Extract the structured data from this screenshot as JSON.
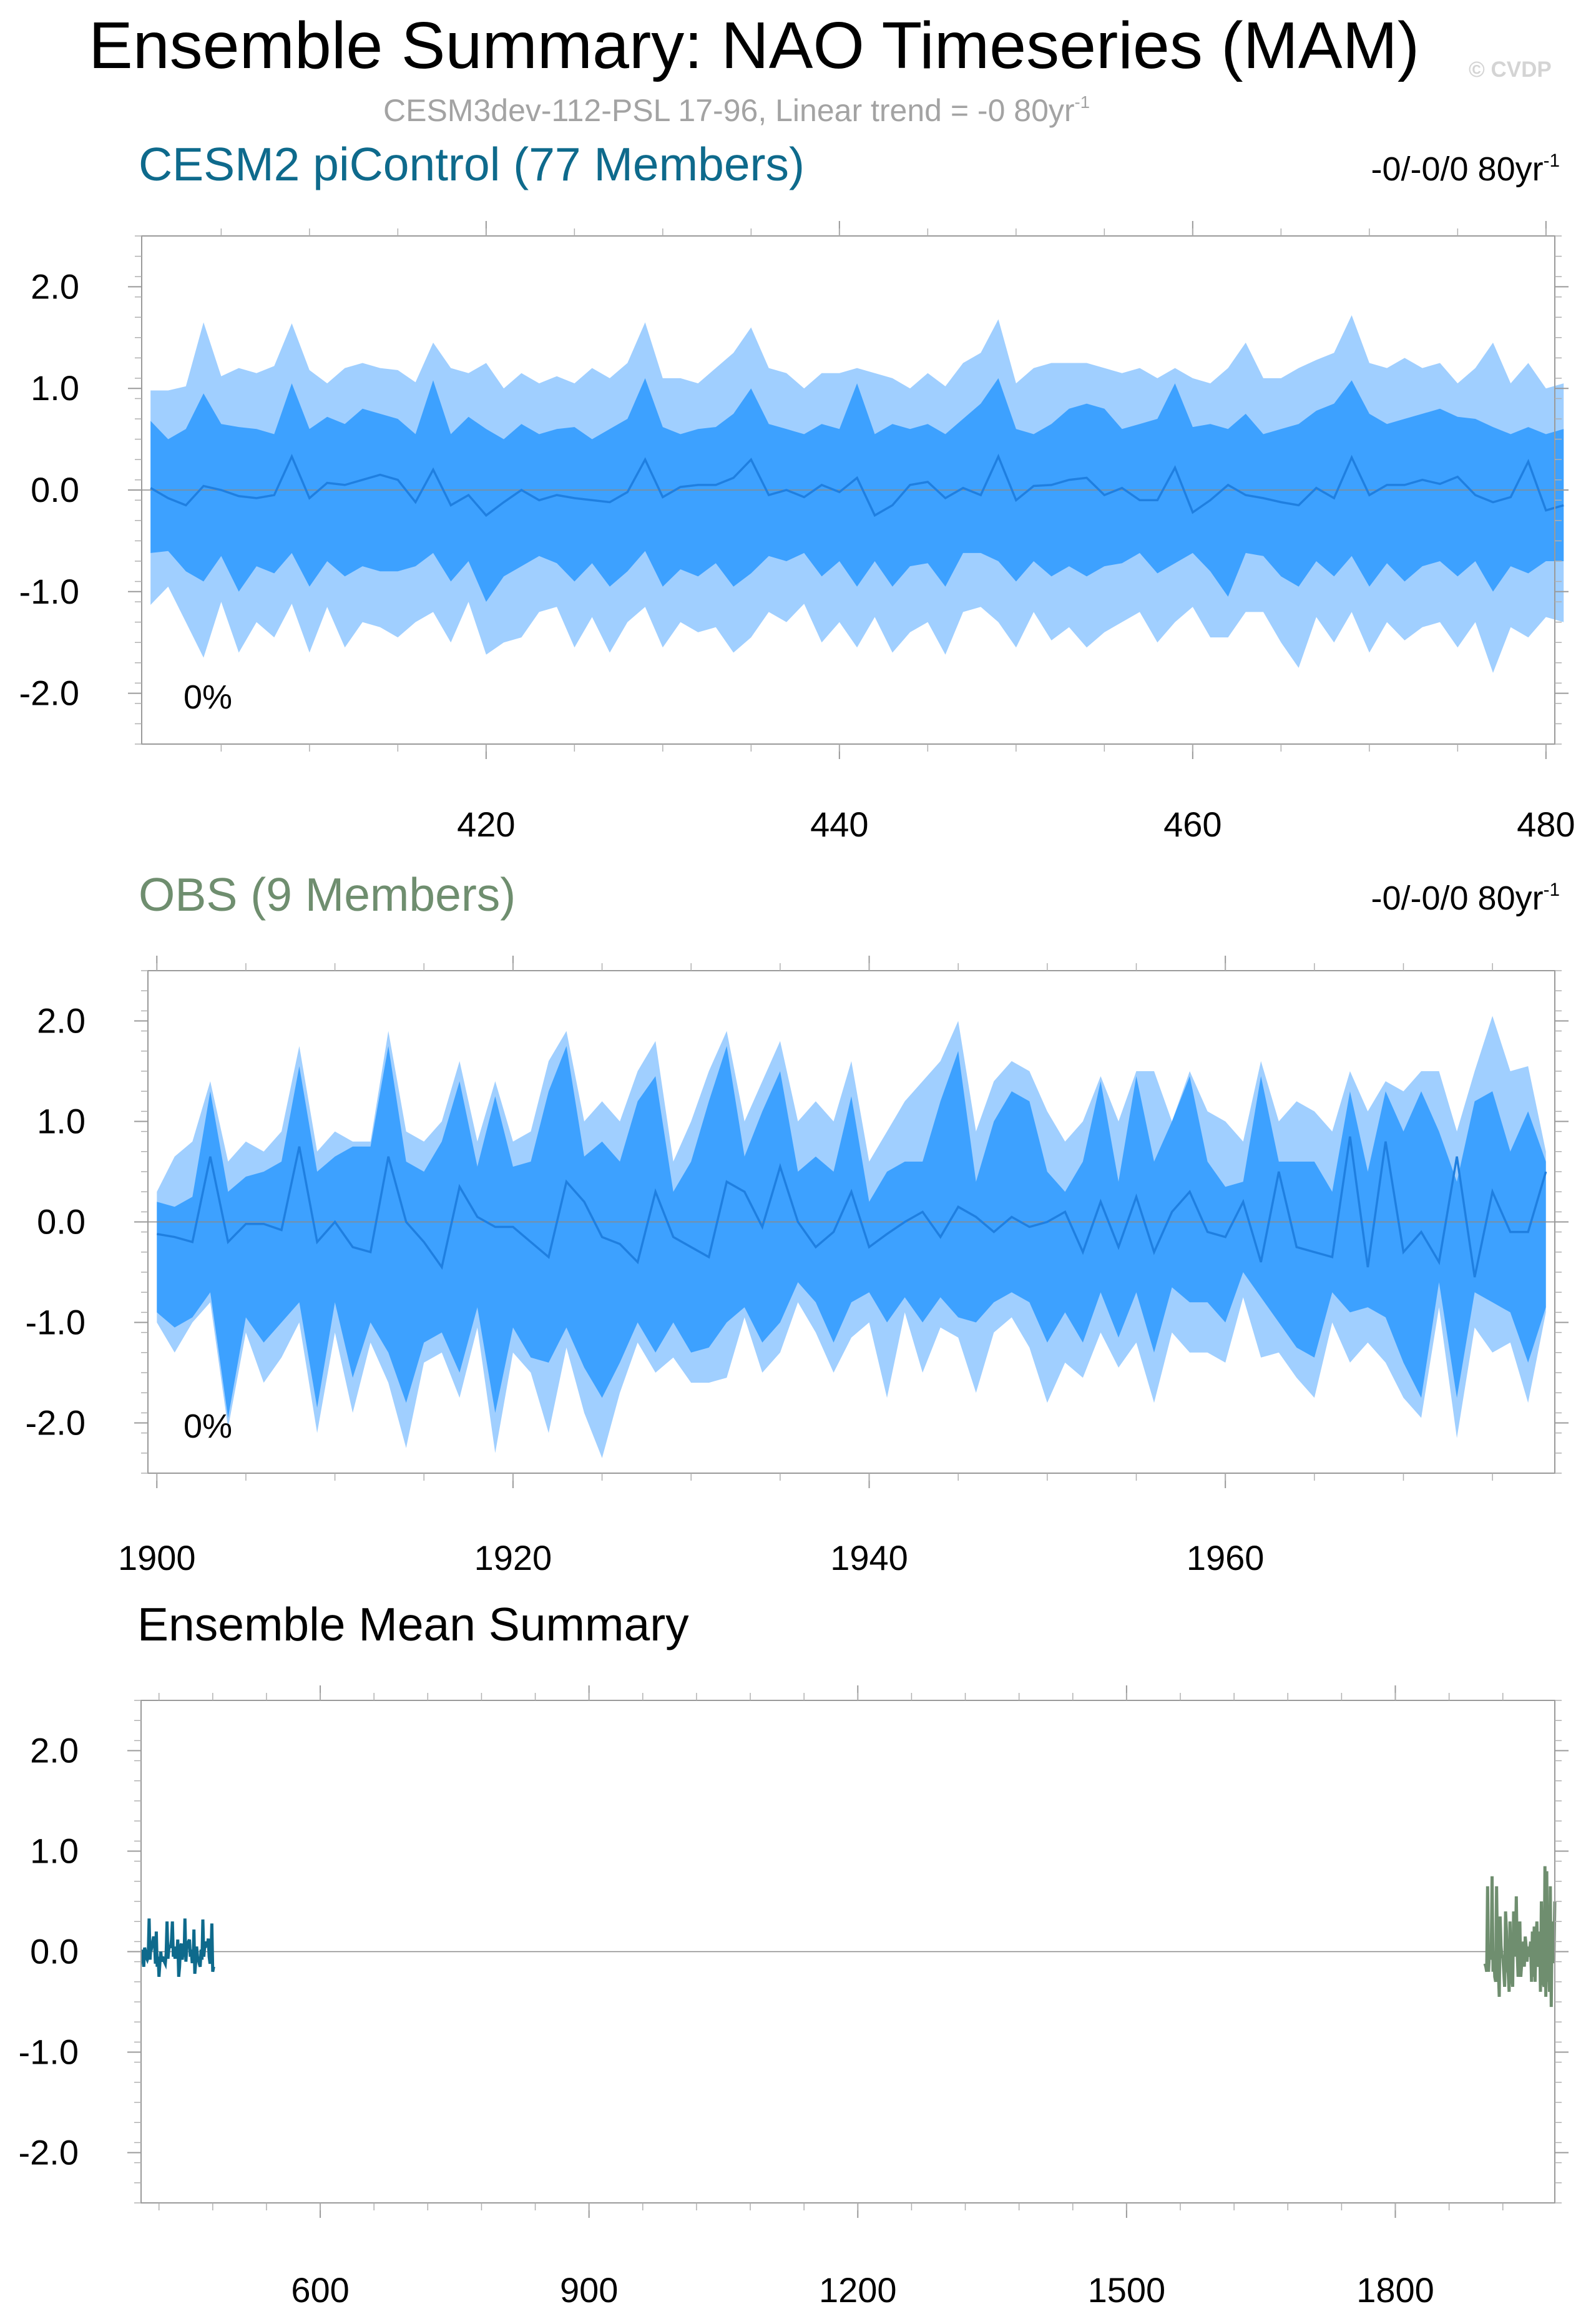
{
  "header": {
    "title": "Ensemble Summary: NAO Timeseries (MAM)",
    "subtitle_prefix": "CESM3dev-112-PSL 17-96, Linear trend = -0 80yr",
    "subtitle_sup": "-1",
    "watermark": "© CVDP"
  },
  "chart_data": [
    {
      "type": "area",
      "title": "CESM2 piControl (77 Members)",
      "title_color": "#0e6a8c",
      "trend_prefix": "-0/-0/0 80yr",
      "trend_sup": "-1",
      "annotation": "0%",
      "xlabel": "",
      "ylabel": "",
      "xlim": [
        400.5,
        480.5
      ],
      "ylim": [
        -2.5,
        2.5
      ],
      "xticks": [
        420,
        440,
        460,
        480
      ],
      "yticks": [
        -2.0,
        -1.0,
        0.0,
        1.0,
        2.0
      ],
      "ytick_labels": [
        "-2.0",
        "-1.0",
        "0.0",
        "1.0",
        "2.0"
      ],
      "bands": [
        {
          "name": "",
          "color": "#a0cfff",
          "upper": [
            0.98,
            0.98,
            1.02,
            1.65,
            1.12,
            1.2,
            1.15,
            1.22,
            1.64,
            1.18,
            1.05,
            1.2,
            1.25,
            1.2,
            1.18,
            1.06,
            1.45,
            1.2,
            1.15,
            1.25,
            1.0,
            1.15,
            1.05,
            1.12,
            1.05,
            1.2,
            1.1,
            1.25,
            1.65,
            1.1,
            1.1,
            1.05,
            1.2,
            1.35,
            1.6,
            1.2,
            1.15,
            1.0,
            1.15,
            1.15,
            1.2,
            1.15,
            1.1,
            1.0,
            1.15,
            1.02,
            1.25,
            1.35,
            1.68,
            1.05,
            1.2,
            1.25,
            1.25,
            1.25,
            1.2,
            1.15,
            1.2,
            1.1,
            1.2,
            1.1,
            1.05,
            1.2,
            1.45,
            1.1,
            1.1,
            1.2,
            1.28,
            1.35,
            1.72,
            1.25,
            1.2,
            1.3,
            1.2,
            1.25,
            1.05,
            1.2,
            1.45,
            1.05,
            1.25,
            1.0,
            1.05
          ],
          "lower": [
            -1.13,
            -0.95,
            -1.3,
            -1.65,
            -1.1,
            -1.6,
            -1.3,
            -1.45,
            -1.12,
            -1.6,
            -1.15,
            -1.55,
            -1.3,
            -1.35,
            -1.45,
            -1.3,
            -1.2,
            -1.5,
            -1.1,
            -1.62,
            -1.5,
            -1.45,
            -1.2,
            -1.15,
            -1.55,
            -1.25,
            -1.6,
            -1.3,
            -1.15,
            -1.55,
            -1.3,
            -1.4,
            -1.35,
            -1.6,
            -1.45,
            -1.2,
            -1.3,
            -1.12,
            -1.5,
            -1.3,
            -1.55,
            -1.25,
            -1.6,
            -1.4,
            -1.3,
            -1.62,
            -1.2,
            -1.15,
            -1.3,
            -1.55,
            -1.2,
            -1.48,
            -1.35,
            -1.55,
            -1.4,
            -1.3,
            -1.2,
            -1.5,
            -1.3,
            -1.15,
            -1.45,
            -1.45,
            -1.2,
            -1.2,
            -1.5,
            -1.75,
            -1.25,
            -1.5,
            -1.2,
            -1.6,
            -1.3,
            -1.48,
            -1.35,
            -1.3,
            -1.55,
            -1.3,
            -1.8,
            -1.35,
            -1.45,
            -1.25,
            -1.3
          ]
        },
        {
          "name": "",
          "color": "#3da1ff",
          "upper": [
            0.68,
            0.5,
            0.6,
            0.95,
            0.65,
            0.62,
            0.6,
            0.55,
            1.05,
            0.6,
            0.72,
            0.65,
            0.8,
            0.75,
            0.7,
            0.55,
            1.08,
            0.55,
            0.72,
            0.6,
            0.5,
            0.65,
            0.55,
            0.6,
            0.62,
            0.5,
            0.6,
            0.7,
            1.1,
            0.62,
            0.55,
            0.6,
            0.62,
            0.75,
            1.0,
            0.65,
            0.6,
            0.55,
            0.65,
            0.6,
            1.05,
            0.55,
            0.65,
            0.6,
            0.65,
            0.55,
            0.7,
            0.85,
            1.1,
            0.6,
            0.55,
            0.65,
            0.8,
            0.85,
            0.8,
            0.6,
            0.65,
            0.7,
            1.05,
            0.62,
            0.65,
            0.6,
            0.75,
            0.55,
            0.6,
            0.65,
            0.78,
            0.85,
            1.08,
            0.75,
            0.65,
            0.7,
            0.75,
            0.8,
            0.72,
            0.7,
            0.62,
            0.55,
            0.62,
            0.55,
            0.6
          ],
          "lower": [
            -0.62,
            -0.6,
            -0.8,
            -0.9,
            -0.65,
            -1.0,
            -0.75,
            -0.82,
            -0.62,
            -0.95,
            -0.7,
            -0.85,
            -0.75,
            -0.8,
            -0.8,
            -0.75,
            -0.62,
            -0.9,
            -0.7,
            -1.1,
            -0.85,
            -0.75,
            -0.65,
            -0.72,
            -0.9,
            -0.72,
            -0.95,
            -0.8,
            -0.6,
            -0.95,
            -0.78,
            -0.85,
            -0.72,
            -0.95,
            -0.82,
            -0.65,
            -0.7,
            -0.62,
            -0.85,
            -0.7,
            -0.95,
            -0.7,
            -0.95,
            -0.75,
            -0.72,
            -0.95,
            -0.62,
            -0.62,
            -0.7,
            -0.9,
            -0.7,
            -0.85,
            -0.75,
            -0.85,
            -0.75,
            -0.72,
            -0.62,
            -0.82,
            -0.72,
            -0.62,
            -0.8,
            -1.05,
            -0.62,
            -0.65,
            -0.85,
            -0.95,
            -0.7,
            -0.85,
            -0.65,
            -0.95,
            -0.72,
            -0.9,
            -0.75,
            -0.7,
            -0.85,
            -0.7,
            -1.0,
            -0.75,
            -0.82,
            -0.7,
            -0.7
          ]
        }
      ],
      "series": [
        {
          "name": "",
          "color": "#1f7fe0",
          "x_start": 401,
          "values": [
            0.02,
            -0.08,
            -0.15,
            0.04,
            0.0,
            -0.06,
            -0.08,
            -0.05,
            0.33,
            -0.08,
            0.07,
            0.05,
            0.1,
            0.15,
            0.1,
            -0.12,
            0.2,
            -0.15,
            -0.05,
            -0.25,
            -0.12,
            0.0,
            -0.1,
            -0.05,
            -0.08,
            -0.1,
            -0.12,
            -0.02,
            0.3,
            -0.07,
            0.03,
            0.05,
            0.05,
            0.12,
            0.3,
            -0.05,
            0.0,
            -0.07,
            0.05,
            -0.02,
            0.12,
            -0.25,
            -0.15,
            0.05,
            0.08,
            -0.08,
            0.02,
            -0.05,
            0.33,
            -0.1,
            0.04,
            0.05,
            0.1,
            0.12,
            -0.05,
            0.02,
            -0.1,
            -0.1,
            0.22,
            -0.22,
            -0.1,
            0.05,
            -0.05,
            -0.08,
            -0.12,
            -0.15,
            0.02,
            -0.08,
            0.32,
            -0.05,
            0.05,
            0.05,
            0.1,
            0.06,
            0.13,
            -0.05,
            -0.12,
            -0.07,
            0.28,
            -0.2,
            -0.15
          ]
        }
      ]
    },
    {
      "type": "area",
      "title": "OBS (9 Members)",
      "title_color": "#6f8e6f",
      "trend_prefix": "-0/-0/0 80yr",
      "trend_sup": "-1",
      "annotation": "0%",
      "xlabel": "",
      "ylabel": "",
      "xlim": [
        1899.5,
        1978.5
      ],
      "ylim": [
        -2.5,
        2.5
      ],
      "xticks": [
        1900,
        1920,
        1940,
        1960
      ],
      "yticks": [
        -2.0,
        -1.0,
        0.0,
        1.0,
        2.0
      ],
      "ytick_labels": [
        "-2.0",
        "-1.0",
        "0.0",
        "1.0",
        "2.0"
      ],
      "bands": [
        {
          "name": "",
          "color": "#a0cfff",
          "upper": [
            0.3,
            0.65,
            0.8,
            1.4,
            0.6,
            0.8,
            0.7,
            0.9,
            1.75,
            0.7,
            0.9,
            0.8,
            0.8,
            1.9,
            0.9,
            0.8,
            1.0,
            1.6,
            0.8,
            1.4,
            0.8,
            0.9,
            1.6,
            1.9,
            1.0,
            1.2,
            1.0,
            1.5,
            1.8,
            0.6,
            1.0,
            1.5,
            1.9,
            1.0,
            1.4,
            1.8,
            1.0,
            1.2,
            1.0,
            1.6,
            0.6,
            0.9,
            1.2,
            1.4,
            1.6,
            2.0,
            0.9,
            1.4,
            1.6,
            1.5,
            1.1,
            0.8,
            1.0,
            1.45,
            1.0,
            1.5,
            1.5,
            1.0,
            1.5,
            1.1,
            1.0,
            0.8,
            1.6,
            1.0,
            1.2,
            1.1,
            0.9,
            1.5,
            1.1,
            1.4,
            1.3,
            1.5,
            1.5,
            0.9,
            1.5,
            2.05,
            1.5,
            1.55,
            0.7
          ],
          "lower": [
            -1.0,
            -1.3,
            -1.0,
            -0.8,
            -2.05,
            -1.1,
            -1.6,
            -1.35,
            -1.0,
            -2.1,
            -1.1,
            -1.9,
            -1.2,
            -1.6,
            -2.25,
            -1.4,
            -1.3,
            -1.75,
            -1.05,
            -2.3,
            -1.3,
            -1.5,
            -2.1,
            -1.25,
            -1.9,
            -2.35,
            -1.7,
            -1.2,
            -1.5,
            -1.35,
            -1.6,
            -1.6,
            -1.55,
            -0.95,
            -1.5,
            -1.3,
            -0.8,
            -1.1,
            -1.5,
            -1.15,
            -1.0,
            -1.75,
            -0.9,
            -1.5,
            -1.05,
            -1.15,
            -1.7,
            -1.1,
            -0.95,
            -1.25,
            -1.8,
            -1.4,
            -1.55,
            -1.1,
            -1.45,
            -1.2,
            -1.8,
            -1.1,
            -1.3,
            -1.3,
            -1.4,
            -0.75,
            -1.35,
            -1.3,
            -1.55,
            -1.75,
            -1.0,
            -1.4,
            -1.2,
            -1.4,
            -1.75,
            -1.95,
            -0.85,
            -2.15,
            -1.05,
            -1.3,
            -1.2,
            -1.8,
            -0.9
          ]
        },
        {
          "name": "",
          "color": "#3da1ff",
          "upper": [
            0.2,
            0.15,
            0.25,
            1.3,
            0.3,
            0.45,
            0.5,
            0.6,
            1.55,
            0.5,
            0.65,
            0.75,
            0.75,
            1.75,
            0.6,
            0.5,
            0.8,
            1.4,
            0.55,
            1.25,
            0.55,
            0.6,
            1.3,
            1.75,
            0.65,
            0.8,
            0.6,
            1.2,
            1.45,
            0.3,
            0.6,
            1.2,
            1.75,
            0.65,
            1.1,
            1.5,
            0.5,
            0.65,
            0.5,
            1.25,
            0.2,
            0.5,
            0.6,
            0.6,
            1.2,
            1.7,
            0.4,
            1.0,
            1.3,
            1.2,
            0.5,
            0.3,
            0.6,
            1.4,
            0.4,
            1.45,
            0.6,
            1.0,
            1.45,
            0.6,
            0.35,
            0.4,
            1.45,
            0.6,
            0.6,
            0.6,
            0.3,
            1.3,
            0.5,
            1.3,
            0.9,
            1.3,
            0.9,
            0.4,
            1.2,
            1.3,
            0.7,
            1.1,
            0.6
          ],
          "lower": [
            -0.9,
            -1.05,
            -0.95,
            -0.7,
            -1.95,
            -0.95,
            -1.2,
            -1.0,
            -0.8,
            -1.85,
            -0.8,
            -1.55,
            -1.0,
            -1.3,
            -1.8,
            -1.2,
            -1.1,
            -1.5,
            -0.85,
            -1.9,
            -1.05,
            -1.35,
            -1.4,
            -1.05,
            -1.45,
            -1.75,
            -1.4,
            -1.0,
            -1.3,
            -1.0,
            -1.3,
            -1.25,
            -1.0,
            -0.85,
            -1.2,
            -1.0,
            -0.6,
            -0.8,
            -1.2,
            -0.8,
            -0.7,
            -1.0,
            -0.75,
            -1.0,
            -0.75,
            -0.95,
            -1.0,
            -0.8,
            -0.7,
            -0.8,
            -1.2,
            -0.9,
            -1.2,
            -0.7,
            -1.15,
            -0.7,
            -1.3,
            -0.65,
            -0.8,
            -0.8,
            -1.0,
            -0.5,
            -0.75,
            -1.0,
            -1.25,
            -1.35,
            -0.7,
            -0.9,
            -0.85,
            -0.95,
            -1.4,
            -1.75,
            -0.6,
            -1.75,
            -0.7,
            -0.8,
            -0.9,
            -1.4,
            -0.85
          ]
        }
      ],
      "series": [
        {
          "name": "",
          "color": "#1f7fe0",
          "x_start": 1900,
          "values": [
            -0.12,
            -0.15,
            -0.2,
            0.65,
            -0.2,
            -0.02,
            -0.02,
            -0.08,
            0.75,
            -0.2,
            0.0,
            -0.25,
            -0.3,
            0.65,
            0.0,
            -0.2,
            -0.45,
            0.35,
            0.05,
            -0.05,
            -0.05,
            -0.2,
            -0.35,
            0.4,
            0.2,
            -0.15,
            -0.22,
            -0.4,
            0.3,
            -0.15,
            -0.25,
            -0.35,
            0.4,
            0.3,
            -0.05,
            0.55,
            0.0,
            -0.25,
            -0.1,
            0.3,
            -0.25,
            -0.12,
            0.0,
            0.1,
            -0.15,
            0.15,
            0.05,
            -0.1,
            0.05,
            -0.05,
            0.0,
            0.1,
            -0.3,
            0.2,
            -0.25,
            0.25,
            -0.3,
            0.1,
            0.3,
            -0.1,
            -0.15,
            0.2,
            -0.4,
            0.5,
            -0.25,
            -0.3,
            -0.35,
            0.85,
            -0.45,
            0.8,
            -0.3,
            -0.1,
            -0.4,
            0.65,
            -0.55,
            0.3,
            -0.1,
            -0.1,
            0.5
          ]
        }
      ]
    },
    {
      "type": "line",
      "title": "Ensemble Mean Summary",
      "xlabel": "",
      "ylabel": "",
      "xlim": [
        400,
        1978
      ],
      "ylim": [
        -2.5,
        2.5
      ],
      "xticks": [
        600,
        900,
        1200,
        1500,
        1800
      ],
      "yticks": [
        -2.0,
        -1.0,
        0.0,
        1.0,
        2.0
      ],
      "ytick_labels": [
        "-2.0",
        "-1.0",
        "0.0",
        "1.0",
        "2.0"
      ],
      "series": [
        {
          "name": "CESM2 piControl",
          "color": "#0e6a8c",
          "x_start": 401,
          "ref": 0
        },
        {
          "name": "OBS",
          "color": "#6f8e6f",
          "x_start": 1900,
          "ref": 1
        }
      ]
    }
  ]
}
